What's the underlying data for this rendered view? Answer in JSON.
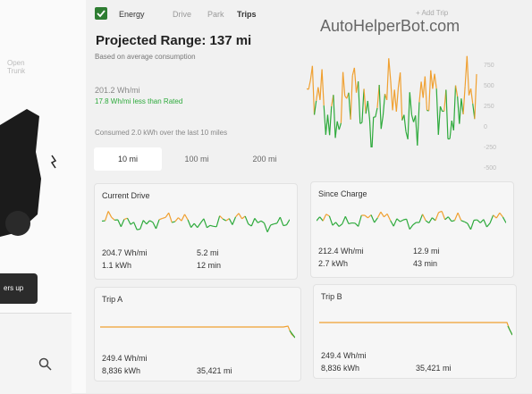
{
  "watermark": "AutoHelperBot.com",
  "tabs": [
    "Energy",
    "Drive",
    "Park",
    "Trips"
  ],
  "add_trip": "+ Add Trip",
  "range": {
    "title": "Projected Range: 137 mi",
    "subtitle": "Based on average consumption"
  },
  "efficiency": {
    "value": "201.2 Wh/mi",
    "comparison": "17.8 Wh/mi less than Rated"
  },
  "consumed": "Consumed 2.0 kWh over the last 10 miles",
  "range_buttons": [
    "10 mi",
    "100 mi",
    "200 mi"
  ],
  "graph_axis": [
    "750",
    "500",
    "250",
    "0",
    "-250",
    "-500"
  ],
  "side": {
    "trunk": "Open Trunk",
    "button": "ers up"
  },
  "cards": [
    {
      "title": "Current Drive",
      "efficiency": "204.7 Wh/mi",
      "distance": "5.2 mi",
      "energy": "1.1 kWh",
      "time": "12 min"
    },
    {
      "title": "Since Charge",
      "efficiency": "212.4 Wh/mi",
      "distance": "12.9 mi",
      "energy": "2.7 kWh",
      "time": "43 min"
    },
    {
      "title": "Trip A",
      "efficiency": "249.4 Wh/mi",
      "energy": "8,836 kWh",
      "distance": "35,421 mi"
    },
    {
      "title": "Trip B",
      "efficiency": "249.4 Wh/mi",
      "energy": "8,836 kWh",
      "distance": "35,421 mi"
    }
  ]
}
